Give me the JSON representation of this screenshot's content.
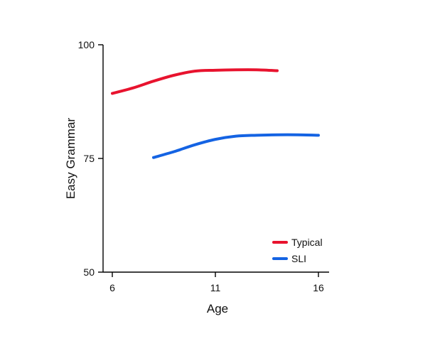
{
  "chart_data": {
    "type": "line",
    "xlabel": "Age",
    "ylabel": "Easy Grammar",
    "xlim": [
      6,
      16
    ],
    "ylim": [
      50,
      100
    ],
    "x_ticks": [
      6,
      11,
      16
    ],
    "y_ticks": [
      50,
      75,
      100
    ],
    "x_tick_labels": [
      "6",
      "11",
      "16"
    ],
    "y_tick_labels": [
      "50",
      "75",
      "100"
    ],
    "grid": false,
    "legend_position": "bottom-right",
    "series": [
      {
        "name": "Typical",
        "color": "#e8132e",
        "points": [
          {
            "x": 6,
            "y": 89.3
          },
          {
            "x": 7,
            "y": 90.5
          },
          {
            "x": 8,
            "y": 92.0
          },
          {
            "x": 9,
            "y": 93.3
          },
          {
            "x": 10,
            "y": 94.2
          },
          {
            "x": 11,
            "y": 94.4
          },
          {
            "x": 12,
            "y": 94.5
          },
          {
            "x": 13,
            "y": 94.5
          },
          {
            "x": 14,
            "y": 94.3
          }
        ]
      },
      {
        "name": "SLI",
        "color": "#1463e3",
        "points": [
          {
            "x": 8,
            "y": 75.2
          },
          {
            "x": 9,
            "y": 76.5
          },
          {
            "x": 10,
            "y": 78.0
          },
          {
            "x": 11,
            "y": 79.2
          },
          {
            "x": 12,
            "y": 79.9
          },
          {
            "x": 13,
            "y": 80.1
          },
          {
            "x": 14,
            "y": 80.2
          },
          {
            "x": 15,
            "y": 80.2
          },
          {
            "x": 16,
            "y": 80.1
          }
        ]
      }
    ]
  }
}
